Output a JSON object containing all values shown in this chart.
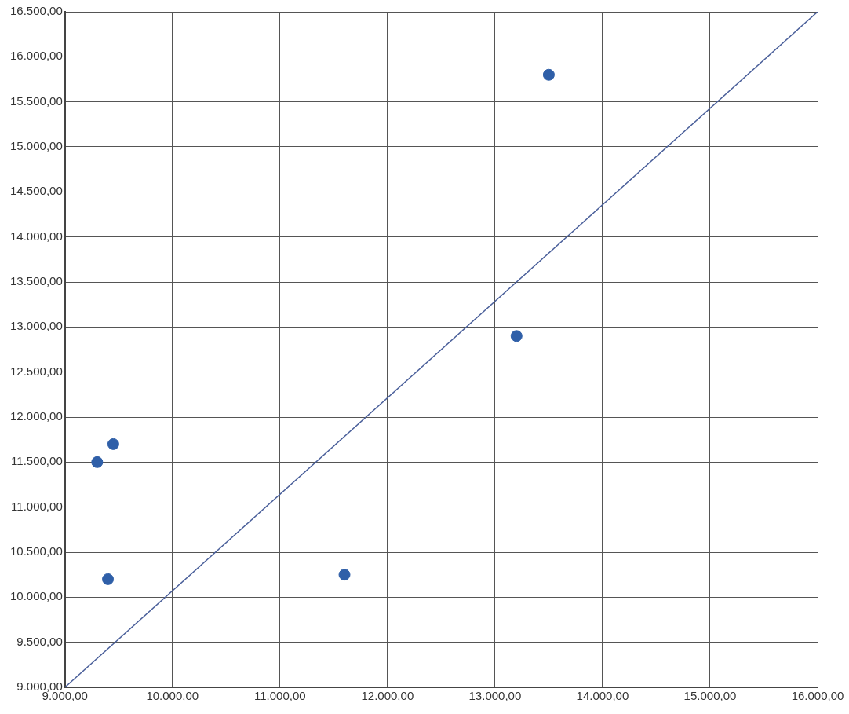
{
  "chart_data": {
    "type": "scatter",
    "grid": true,
    "xlim": [
      9000,
      16000
    ],
    "ylim": [
      9000,
      16500
    ],
    "xticks": [
      {
        "value": 9000,
        "label": "9.000,00"
      },
      {
        "value": 10000,
        "label": "10.000,00"
      },
      {
        "value": 11000,
        "label": "11.000,00"
      },
      {
        "value": 12000,
        "label": "12.000,00"
      },
      {
        "value": 13000,
        "label": "13.000,00"
      },
      {
        "value": 14000,
        "label": "14.000,00"
      },
      {
        "value": 15000,
        "label": "15.000,00"
      },
      {
        "value": 16000,
        "label": "16.000,00"
      }
    ],
    "yticks": [
      {
        "value": 9000,
        "label": "9.000,00"
      },
      {
        "value": 9500,
        "label": "9.500,00"
      },
      {
        "value": 10000,
        "label": "10.000,00"
      },
      {
        "value": 10500,
        "label": "10.500,00"
      },
      {
        "value": 11000,
        "label": "11.000,00"
      },
      {
        "value": 11500,
        "label": "11.500,00"
      },
      {
        "value": 12000,
        "label": "12.000,00"
      },
      {
        "value": 12500,
        "label": "12.500,00"
      },
      {
        "value": 13000,
        "label": "13.000,00"
      },
      {
        "value": 13500,
        "label": "13.500,00"
      },
      {
        "value": 14000,
        "label": "14.000,00"
      },
      {
        "value": 14500,
        "label": "14.500,00"
      },
      {
        "value": 15000,
        "label": "15.000,00"
      },
      {
        "value": 15500,
        "label": "15.500,00"
      },
      {
        "value": 16000,
        "label": "16.000,00"
      },
      {
        "value": 16500,
        "label": "16.500,00"
      }
    ],
    "series": [
      {
        "marker": "circle",
        "color": "#2f5fa8",
        "x": [
          9300,
          9450,
          9400,
          11600,
          13200,
          13500
        ],
        "values": [
          11500,
          11700,
          10200,
          10250,
          12900,
          15800
        ]
      },
      {
        "type": "line",
        "color": "#4a5f9a",
        "x": [
          9000,
          16000
        ],
        "values": [
          9000,
          16500
        ]
      }
    ]
  }
}
